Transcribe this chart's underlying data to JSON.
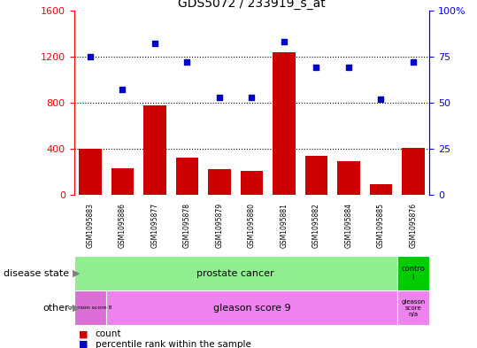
{
  "title": "GDS5072 / 233919_s_at",
  "samples": [
    "GSM1095883",
    "GSM1095886",
    "GSM1095877",
    "GSM1095878",
    "GSM1095879",
    "GSM1095880",
    "GSM1095881",
    "GSM1095882",
    "GSM1095884",
    "GSM1095885",
    "GSM1095876"
  ],
  "counts": [
    400,
    230,
    780,
    320,
    220,
    210,
    1240,
    340,
    290,
    90,
    410
  ],
  "percentile": [
    75,
    57,
    82,
    72,
    53,
    53,
    83,
    69,
    69,
    52,
    72
  ],
  "ylim_left": [
    0,
    1600
  ],
  "ylim_right": [
    0,
    100
  ],
  "left_ticks": [
    0,
    400,
    800,
    1200,
    1600
  ],
  "right_ticks": [
    0,
    25,
    50,
    75,
    100
  ],
  "bar_color": "#cc0000",
  "dot_color": "#0000cc",
  "plot_bg": "#ffffff",
  "gray_bg": "#d3d3d3",
  "green_light": "#90ee90",
  "green_dark": "#00cc00",
  "purple_light": "#ee82ee",
  "purple_dark": "#da70d6",
  "legend_items": [
    "count",
    "percentile rank within the sample"
  ]
}
